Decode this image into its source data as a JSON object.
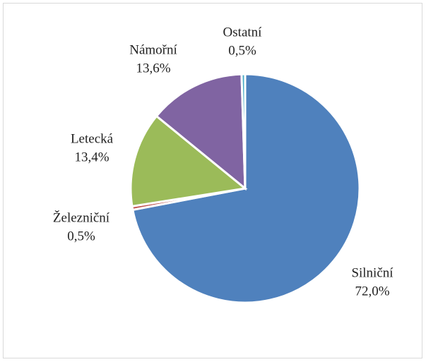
{
  "chart_data": {
    "type": "pie",
    "categories": [
      "Silniční",
      "Železniční",
      "Letecká",
      "Námořní",
      "Ostatní"
    ],
    "values": [
      72.0,
      0.5,
      13.4,
      13.6,
      0.5
    ],
    "value_labels": [
      "72,0%",
      "0,5%",
      "13,4%",
      "13,6%",
      "0,5%"
    ],
    "colors": [
      "#4f81bd",
      "#c0504d",
      "#9bbb59",
      "#8064a2",
      "#4bacc6"
    ]
  }
}
